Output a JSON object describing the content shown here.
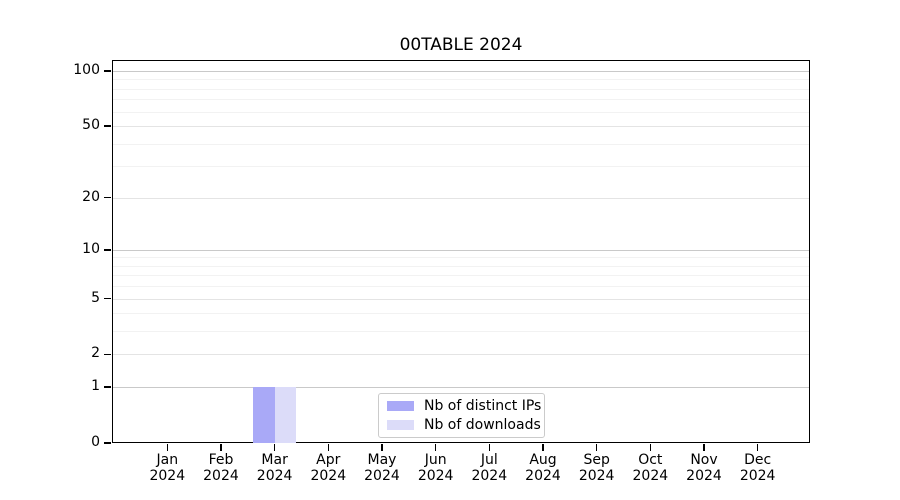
{
  "chart_data": {
    "type": "bar",
    "title": "00TABLE 2024",
    "categories": [
      "Jan",
      "Feb",
      "Mar",
      "Apr",
      "May",
      "Jun",
      "Jul",
      "Aug",
      "Sep",
      "Oct",
      "Nov",
      "Dec"
    ],
    "xtick_year": "2024",
    "series": [
      {
        "name": "Nb of distinct IPs",
        "color": "#a9a9f7",
        "values": [
          0,
          0,
          1,
          0,
          0,
          0,
          0,
          0,
          0,
          0,
          0,
          0
        ]
      },
      {
        "name": "Nb of downloads",
        "color": "#dcdcf9",
        "values": [
          0,
          0,
          1,
          0,
          0,
          0,
          0,
          0,
          0,
          0,
          0,
          0
        ]
      }
    ],
    "yscale": "log10(1+x)",
    "yticks": [
      0,
      1,
      2,
      5,
      10,
      20,
      50,
      100
    ],
    "yticks_decade": [
      1,
      10,
      100
    ],
    "yticks_minor": [
      3,
      4,
      6,
      7,
      8,
      9,
      30,
      40,
      60,
      70,
      80,
      90
    ],
    "ylim": [
      0,
      115
    ],
    "xlabel": "",
    "ylabel": "",
    "grid": "horizontal",
    "legend_position": "lower center",
    "legend": [
      "Nb of distinct IPs",
      "Nb of downloads"
    ],
    "bar_values_text": {
      "mar_distinct_ips": 1,
      "mar_downloads": 1
    }
  }
}
